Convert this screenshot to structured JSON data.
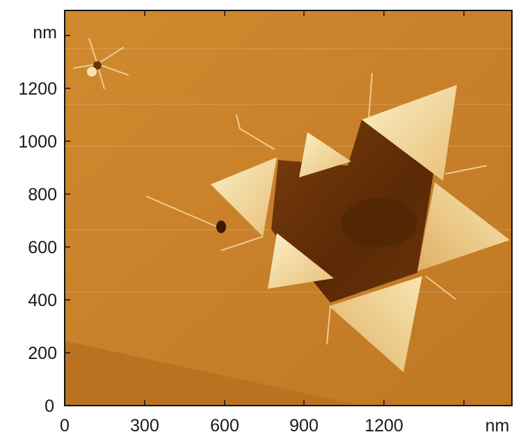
{
  "figure": {
    "x_axis": {
      "ticks": [
        "0",
        "300",
        "600",
        "900",
        "1200"
      ],
      "unit": "nm"
    },
    "y_axis": {
      "ticks": [
        "0",
        "200",
        "400",
        "600",
        "800",
        "1000",
        "1200"
      ],
      "unit": "nm"
    },
    "colors": {
      "background": "#c87e24",
      "dark_hole": "#5e2d06",
      "bright_triangle": "#f6e0a8",
      "frame": "#111111"
    }
  }
}
